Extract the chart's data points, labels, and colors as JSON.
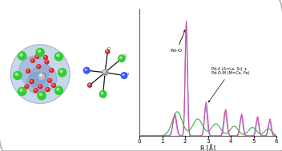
{
  "bg_color": "#ffffff",
  "panel_bg": "#ffffff",
  "border_color": "#b0b0b0",
  "plot_xlim": [
    0,
    6
  ],
  "plot_ylim": [
    0,
    1.05
  ],
  "xlabel": "R [Å]",
  "xticks": [
    0,
    1,
    2,
    3,
    4,
    5,
    6
  ],
  "annotation_pd_o": "Pd-O",
  "annotation_pd_a_m": "Pd-A (A=La, Sr) +\nPd-O-M (M=Co, Fe)",
  "line_colors_pink": "#cc44aa",
  "line_colors_blue": "#6688cc",
  "line_colors_green": "#22aa22",
  "line_colors_lightpink": "#dd88bb",
  "figsize": [
    3.52,
    1.89
  ],
  "dpi": 100
}
